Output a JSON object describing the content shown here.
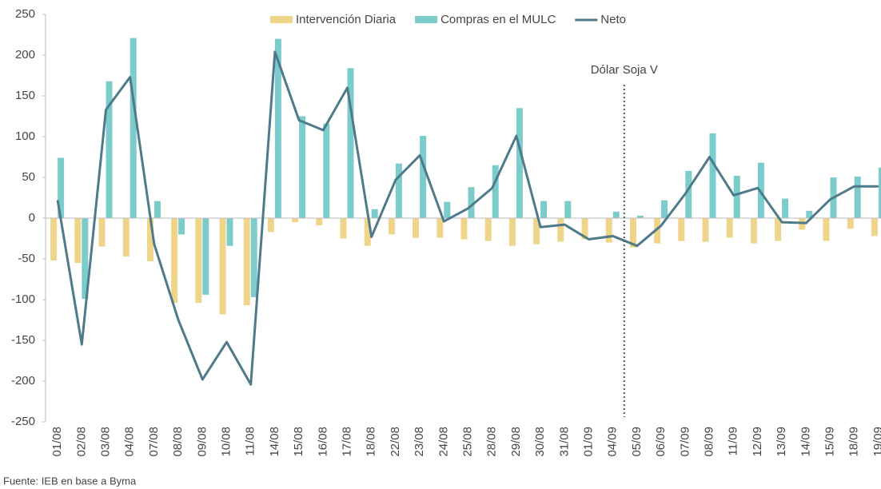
{
  "chart_data": {
    "type": "bar_line",
    "categories": [
      "01/08",
      "02/08",
      "03/08",
      "04/08",
      "07/08",
      "08/08",
      "09/08",
      "10/08",
      "11/08",
      "14/08",
      "15/08",
      "16/08",
      "17/08",
      "18/08",
      "22/08",
      "23/08",
      "24/08",
      "25/08",
      "28/08",
      "29/08",
      "30/08",
      "31/08",
      "01/09",
      "04/09",
      "05/09",
      "06/09",
      "07/09",
      "08/09",
      "11/09",
      "12/09",
      "13/09",
      "14/09",
      "15/09",
      "18/09",
      "19/09"
    ],
    "series": [
      {
        "name": "Intervención Diaria",
        "type": "bar",
        "color": "#efd58a",
        "values": [
          -52,
          -55,
          -35,
          -47,
          -53,
          -104,
          -104,
          -118,
          -107,
          -17,
          -5,
          -9,
          -25,
          -34,
          -20,
          -24,
          -24,
          -26,
          -28,
          -34,
          -32,
          -29,
          -26,
          -30,
          -36,
          -31,
          -28,
          -29,
          -24,
          -31,
          -28,
          -14,
          -28,
          -13,
          -22
        ]
      },
      {
        "name": "Compras en el MULC",
        "type": "bar",
        "color": "#7dcccc",
        "values": [
          74,
          -99,
          168,
          221,
          21,
          -20,
          -94,
          -34,
          -97,
          220,
          125,
          116,
          184,
          11,
          67,
          101,
          20,
          38,
          65,
          135,
          21,
          21,
          0,
          8,
          3,
          22,
          58,
          104,
          52,
          68,
          24,
          9,
          50,
          51,
          62
        ]
      },
      {
        "name": "Neto",
        "type": "line",
        "color": "#4f7a8a",
        "values": [
          22,
          -155,
          133,
          173,
          -32,
          -125,
          -198,
          -152,
          -204,
          204,
          120,
          108,
          160,
          -23,
          47,
          77,
          -4,
          12,
          37,
          101,
          -11,
          -8,
          -26,
          -22,
          -34,
          -9,
          30,
          75,
          28,
          37,
          -5,
          -6,
          23,
          39,
          39
        ]
      }
    ],
    "ylim": [
      -250,
      250
    ],
    "yticks": [
      -250,
      -200,
      -150,
      -100,
      -50,
      0,
      50,
      100,
      150,
      200,
      250
    ],
    "annotation": "Dólar Soja V",
    "source": "Fuente: IEB en base a Byma"
  }
}
